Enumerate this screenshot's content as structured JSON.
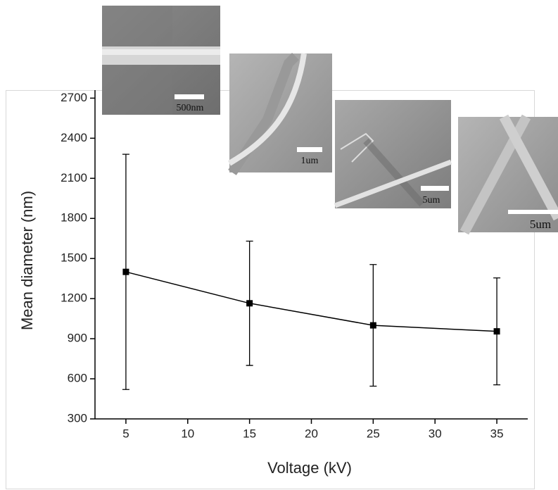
{
  "chart_data": {
    "type": "errorbar-line",
    "x_label": "Voltage (kV)",
    "y_label": "Mean diameter (nm)",
    "x": [
      5,
      15,
      25,
      35
    ],
    "values": [
      1400,
      1165,
      1000,
      955
    ],
    "errors": [
      880,
      465,
      455,
      400
    ],
    "color": "#000000",
    "xlim": [
      2.5,
      37.5
    ],
    "xticks": [
      5,
      10,
      15,
      20,
      25,
      30,
      35
    ],
    "ylim": [
      300,
      2760
    ],
    "yticks": [
      300,
      600,
      900,
      1200,
      1500,
      1800,
      2100,
      2400,
      2700
    ],
    "grid": false,
    "annotations": [
      "500nm",
      "1um",
      "5um",
      "5um"
    ]
  }
}
